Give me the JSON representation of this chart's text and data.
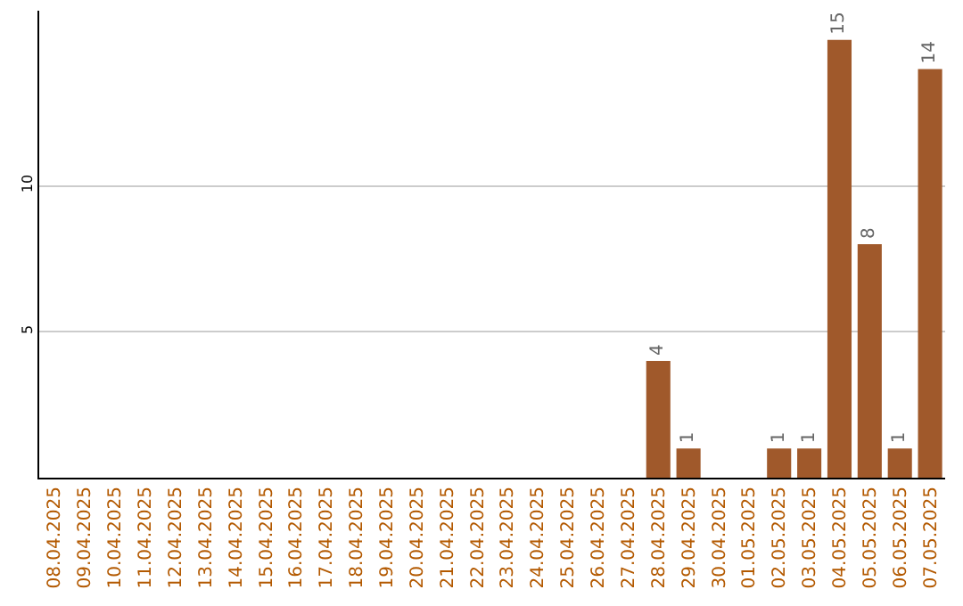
{
  "chart_data": {
    "type": "bar",
    "categories": [
      "08.04.2025",
      "09.04.2025",
      "10.04.2025",
      "11.04.2025",
      "12.04.2025",
      "13.04.2025",
      "14.04.2025",
      "15.04.2025",
      "16.04.2025",
      "17.04.2025",
      "18.04.2025",
      "19.04.2025",
      "20.04.2025",
      "21.04.2025",
      "22.04.2025",
      "23.04.2025",
      "24.04.2025",
      "25.04.2025",
      "26.04.2025",
      "27.04.2025",
      "28.04.2025",
      "29.04.2025",
      "30.04.2025",
      "01.05.2025",
      "02.05.2025",
      "03.05.2025",
      "04.05.2025",
      "05.05.2025",
      "06.05.2025",
      "07.05.2025"
    ],
    "values": [
      0,
      0,
      0,
      0,
      0,
      0,
      0,
      0,
      0,
      0,
      0,
      0,
      0,
      0,
      0,
      0,
      0,
      0,
      0,
      0,
      4,
      1,
      0,
      0,
      1,
      1,
      15,
      8,
      1,
      14
    ],
    "value_labels": [
      null,
      null,
      null,
      null,
      null,
      null,
      null,
      null,
      null,
      null,
      null,
      null,
      null,
      null,
      null,
      null,
      null,
      null,
      null,
      null,
      "4",
      "1",
      null,
      null,
      "1",
      "1",
      "15",
      "8",
      "1",
      "14"
    ],
    "color": "#a0592b",
    "ylim": [
      0,
      16
    ],
    "yticks": [
      5,
      10
    ],
    "grid": "y"
  }
}
